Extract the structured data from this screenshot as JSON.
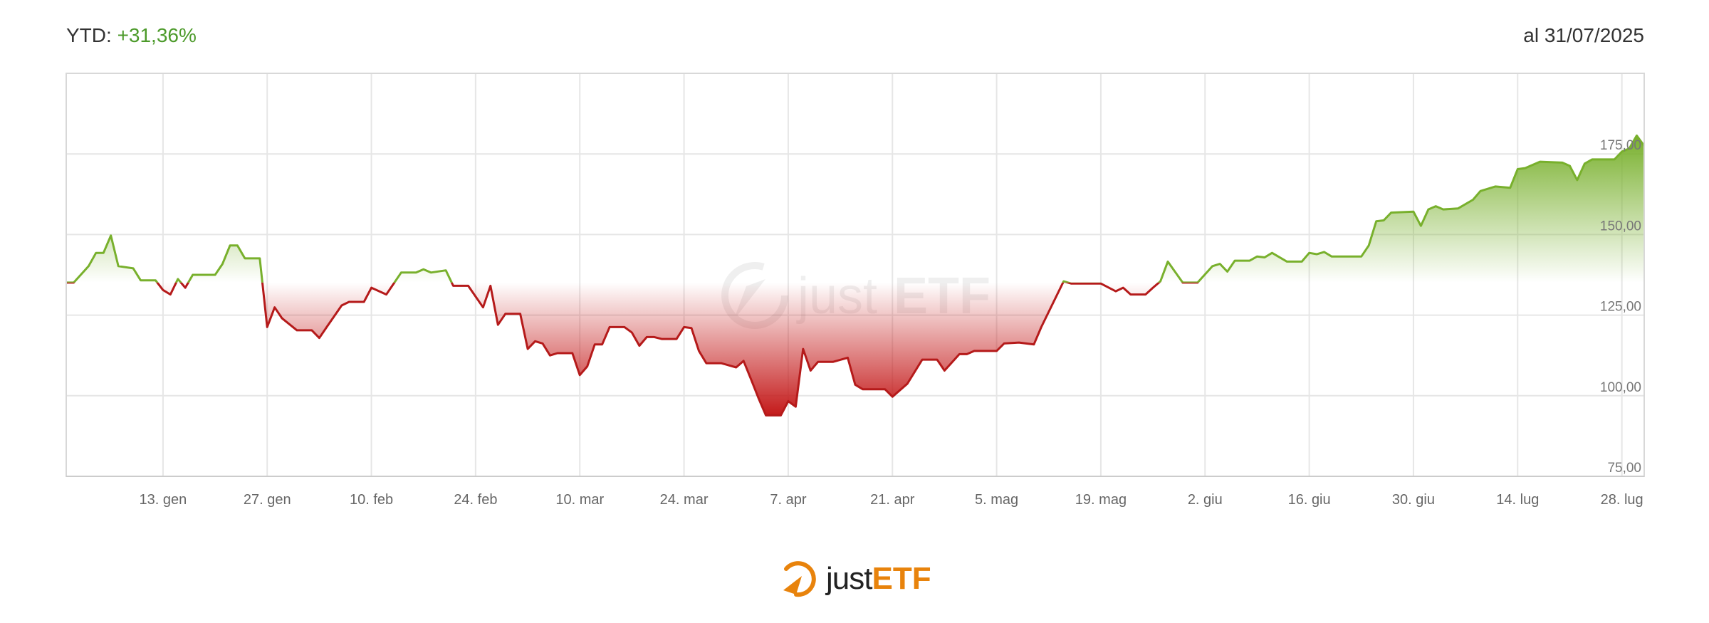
{
  "header": {
    "ytd_label": "YTD:",
    "ytd_value": "+31,36%",
    "as_of": "al 31/07/2025"
  },
  "logo": {
    "text_just": "just",
    "text_etf": "ETF"
  },
  "colors": {
    "positive": "#78b02c",
    "negative": "#b51a1a",
    "brand_orange": "#e8830c",
    "grid": "#e6e6e6"
  },
  "chart_data": {
    "type": "area",
    "title": "",
    "xlabel": "",
    "ylabel": "",
    "xlim": [
      "2024-12-31",
      "2025-07-31"
    ],
    "ylim": [
      75,
      200
    ],
    "y_ticks": [
      75,
      100,
      125,
      150,
      175
    ],
    "y_tick_labels": [
      "75,00",
      "100,00",
      "125,00",
      "150,00",
      "175,00"
    ],
    "x_ticks": [
      "2025-01-13",
      "2025-01-27",
      "2025-02-10",
      "2025-02-24",
      "2025-03-10",
      "2025-03-24",
      "2025-04-07",
      "2025-04-21",
      "2025-05-05",
      "2025-05-19",
      "2025-06-02",
      "2025-06-16",
      "2025-06-30",
      "2025-07-14",
      "2025-07-28"
    ],
    "x_tick_labels": [
      "13. gen",
      "27. gen",
      "10. feb",
      "24. feb",
      "10. mar",
      "24. mar",
      "7. apr",
      "21. apr",
      "5. mag",
      "19. mag",
      "2. giu",
      "16. giu",
      "30. giu",
      "14. lug",
      "28. lug"
    ],
    "grid": true,
    "baseline": 135.1,
    "series": [
      {
        "dates": [
          "2024-12-31",
          "2025-01-01",
          "2025-01-03",
          "2025-01-04",
          "2025-01-05",
          "2025-01-06",
          "2025-01-07",
          "2025-01-09",
          "2025-01-10",
          "2025-01-12",
          "2025-01-13",
          "2025-01-14",
          "2025-01-15",
          "2025-01-16",
          "2025-01-17",
          "2025-01-20",
          "2025-01-21",
          "2025-01-22",
          "2025-01-23",
          "2025-01-24",
          "2025-01-26",
          "2025-01-27",
          "2025-01-28",
          "2025-01-29",
          "2025-01-31",
          "2025-02-02",
          "2025-02-03",
          "2025-02-04",
          "2025-02-06",
          "2025-02-07",
          "2025-02-09",
          "2025-02-10",
          "2025-02-12",
          "2025-02-14",
          "2025-02-16",
          "2025-02-17",
          "2025-02-18",
          "2025-02-20",
          "2025-02-21",
          "2025-02-23",
          "2025-02-25",
          "2025-02-26",
          "2025-02-27",
          "2025-02-28",
          "2025-03-02",
          "2025-03-03",
          "2025-03-04",
          "2025-03-05",
          "2025-03-06",
          "2025-03-07",
          "2025-03-09",
          "2025-03-10",
          "2025-03-11",
          "2025-03-12",
          "2025-03-13",
          "2025-03-14",
          "2025-03-16",
          "2025-03-17",
          "2025-03-18",
          "2025-03-19",
          "2025-03-20",
          "2025-03-21",
          "2025-03-23",
          "2025-03-24",
          "2025-03-25",
          "2025-03-26",
          "2025-03-27",
          "2025-03-29",
          "2025-03-31",
          "2025-04-01",
          "2025-04-02",
          "2025-04-03",
          "2025-04-04",
          "2025-04-06",
          "2025-04-07",
          "2025-04-08",
          "2025-04-09",
          "2025-04-10",
          "2025-04-11",
          "2025-04-13",
          "2025-04-15",
          "2025-04-16",
          "2025-04-17",
          "2025-04-20",
          "2025-04-21",
          "2025-04-23",
          "2025-04-25",
          "2025-04-27",
          "2025-04-28",
          "2025-04-30",
          "2025-05-01",
          "2025-05-02",
          "2025-05-05",
          "2025-05-06",
          "2025-05-08",
          "2025-05-10",
          "2025-05-11",
          "2025-05-14",
          "2025-05-15",
          "2025-05-19",
          "2025-05-21",
          "2025-05-22",
          "2025-05-23",
          "2025-05-25",
          "2025-05-26",
          "2025-05-27",
          "2025-05-28",
          "2025-05-30",
          "2025-06-01",
          "2025-06-03",
          "2025-06-04",
          "2025-06-05",
          "2025-06-06",
          "2025-06-08",
          "2025-06-09",
          "2025-06-10",
          "2025-06-11",
          "2025-06-13",
          "2025-06-15",
          "2025-06-16",
          "2025-06-17",
          "2025-06-18",
          "2025-06-19",
          "2025-06-23",
          "2025-06-24",
          "2025-06-25",
          "2025-06-26",
          "2025-06-27",
          "2025-06-30",
          "2025-07-01",
          "2025-07-02",
          "2025-07-03",
          "2025-07-04",
          "2025-07-06",
          "2025-07-08",
          "2025-07-09",
          "2025-07-11",
          "2025-07-13",
          "2025-07-14",
          "2025-07-15",
          "2025-07-17",
          "2025-07-20",
          "2025-07-21",
          "2025-07-22",
          "2025-07-23",
          "2025-07-24",
          "2025-07-27",
          "2025-07-28",
          "2025-07-29",
          "2025-07-30",
          "2025-07-31"
        ],
        "values": [
          135.1,
          135.1,
          140.2,
          144.3,
          144.3,
          149.7,
          140.2,
          139.5,
          135.8,
          135.8,
          132.8,
          131.4,
          136.2,
          133.5,
          137.5,
          137.5,
          140.9,
          146.6,
          146.6,
          142.6,
          142.6,
          121.3,
          127.4,
          124.0,
          120.3,
          120.3,
          117.9,
          121.3,
          128.0,
          129.1,
          129.1,
          133.5,
          131.4,
          138.2,
          138.2,
          139.2,
          138.2,
          138.9,
          134.1,
          134.1,
          127.4,
          134.1,
          122.0,
          125.4,
          125.4,
          114.5,
          116.9,
          116.2,
          112.5,
          113.2,
          113.2,
          106.4,
          109.1,
          115.9,
          115.9,
          121.3,
          121.3,
          119.6,
          115.5,
          118.2,
          118.2,
          117.6,
          117.6,
          121.3,
          121.0,
          113.9,
          110.1,
          110.1,
          108.8,
          110.8,
          105.1,
          99.3,
          93.9,
          93.9,
          98.3,
          96.6,
          114.5,
          107.8,
          110.5,
          110.5,
          111.8,
          103.4,
          102.0,
          102.0,
          99.7,
          103.7,
          111.2,
          111.2,
          107.8,
          112.9,
          112.9,
          113.9,
          113.9,
          116.2,
          116.5,
          115.9,
          121.3,
          135.5,
          134.8,
          134.8,
          132.4,
          133.5,
          131.4,
          131.4,
          133.5,
          135.5,
          141.6,
          135.1,
          135.1,
          140.2,
          140.9,
          138.5,
          141.9,
          141.9,
          143.2,
          142.9,
          144.3,
          141.6,
          141.6,
          144.3,
          143.9,
          144.6,
          143.2,
          143.2,
          146.6,
          154.1,
          154.4,
          156.8,
          157.1,
          152.7,
          157.8,
          158.8,
          157.8,
          158.1,
          160.8,
          163.5,
          164.9,
          164.5,
          170.3,
          170.6,
          172.6,
          172.3,
          171.3,
          166.9,
          172.0,
          173.3,
          173.3,
          175.7,
          176.7,
          180.7,
          177.5
        ]
      }
    ]
  }
}
